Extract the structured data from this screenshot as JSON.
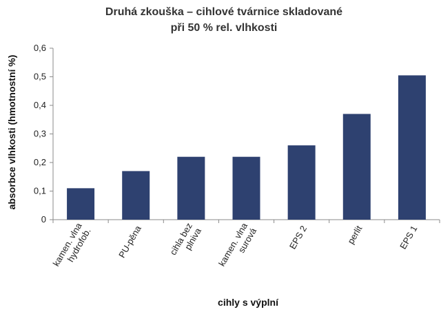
{
  "chart_data": {
    "type": "bar",
    "title_lines": [
      "Druhá zkouška – cihlové tvárnice skladované",
      "při 50 % rel. vlhkosti"
    ],
    "xlabel": "cihly s výplní",
    "ylabel": "absorbce vlhkosti (hmotnostní %)",
    "categories": [
      [
        "kamen. vlna",
        "hydrofob."
      ],
      [
        "PU-pěna"
      ],
      [
        "cihla bez",
        "plniva"
      ],
      [
        "kamen. vlna",
        "surová"
      ],
      [
        "EPS 2"
      ],
      [
        "perlit"
      ],
      [
        "EPS 1"
      ]
    ],
    "values": [
      0.11,
      0.17,
      0.22,
      0.22,
      0.26,
      0.37,
      0.505
    ],
    "ylim": [
      0,
      0.6
    ],
    "yticks": [
      "0",
      "0,1",
      "0,2",
      "0,3",
      "0,4",
      "0,5",
      "0,6"
    ],
    "bar_color": "#2e4170",
    "grid": false,
    "legend": "none"
  }
}
